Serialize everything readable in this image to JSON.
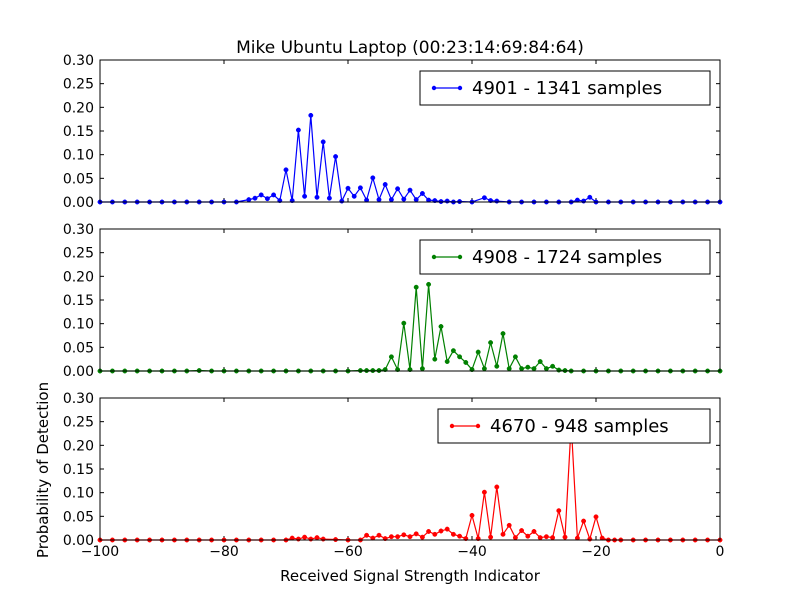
{
  "chart_data": {
    "type": "line",
    "title": "Mike Ubuntu Laptop (00:23:14:69:84:64)",
    "xlabel": "Received Signal Strength Indicator",
    "ylabel": "Probability of Detection",
    "xlim": [
      -100,
      0
    ],
    "ylim": [
      0,
      0.3
    ],
    "x_ticks": [
      -100,
      -80,
      -60,
      -40,
      -20,
      0
    ],
    "x_tick_labels": [
      "−100",
      "−80",
      "−60",
      "−40",
      "−20",
      "0"
    ],
    "y_ticks": [
      0,
      0.05,
      0.1,
      0.15,
      0.2,
      0.25,
      0.3
    ],
    "y_tick_labels": [
      "0.00",
      "0.05",
      "0.10",
      "0.15",
      "0.20",
      "0.25",
      "0.30"
    ],
    "grid": false,
    "legend_position": "top-right",
    "series": [
      {
        "name": "4901 - 1341 samples",
        "color": "#0000ff",
        "x": [
          -100,
          -98,
          -96,
          -94,
          -92,
          -90,
          -88,
          -86,
          -84,
          -82,
          -80,
          -78,
          -76,
          -75,
          -74,
          -73,
          -72,
          -71,
          -70,
          -69,
          -68,
          -67,
          -66,
          -65,
          -64,
          -63,
          -62,
          -61,
          -60,
          -59,
          -58,
          -57,
          -56,
          -55,
          -54,
          -53,
          -52,
          -51,
          -50,
          -49,
          -48,
          -47,
          -46,
          -45,
          -44,
          -43,
          -42,
          -40,
          -38,
          -37,
          -36,
          -34,
          -32,
          -30,
          -28,
          -26,
          -24,
          -23,
          -22,
          -21,
          -20,
          -18,
          -16,
          -14,
          -12,
          -10,
          -8,
          -6,
          -4,
          -2,
          0
        ],
        "y": [
          0,
          0,
          0,
          0,
          0,
          0,
          0,
          0,
          0,
          0,
          0,
          0,
          0.005,
          0.008,
          0.015,
          0.007,
          0.015,
          0.003,
          0.068,
          0.003,
          0.152,
          0.012,
          0.183,
          0.01,
          0.127,
          0.008,
          0.096,
          0.002,
          0.029,
          0.012,
          0.03,
          0.004,
          0.051,
          0.005,
          0.037,
          0.005,
          0.028,
          0.006,
          0.025,
          0.005,
          0.018,
          0.004,
          0.003,
          0.001,
          0.002,
          0,
          0.001,
          0,
          0.009,
          0.003,
          0.002,
          0,
          0,
          0,
          0,
          0,
          0,
          0.004,
          0.002,
          0.01,
          0,
          0,
          0,
          0,
          0,
          0,
          0,
          0,
          0,
          0,
          0
        ]
      },
      {
        "name": "4908 - 1724 samples",
        "color": "#008000",
        "x": [
          -100,
          -98,
          -96,
          -94,
          -92,
          -90,
          -88,
          -86,
          -84,
          -82,
          -80,
          -78,
          -76,
          -74,
          -72,
          -70,
          -68,
          -66,
          -64,
          -62,
          -60,
          -58,
          -57,
          -56,
          -55,
          -54,
          -53,
          -52,
          -51,
          -50,
          -49,
          -48,
          -47,
          -46,
          -45,
          -44,
          -43,
          -42,
          -41,
          -40,
          -39,
          -38,
          -37,
          -36,
          -35,
          -34,
          -33,
          -32,
          -31,
          -30,
          -29,
          -28,
          -27,
          -26,
          -25,
          -24,
          -22,
          -20,
          -18,
          -16,
          -14,
          -12,
          -10,
          -8,
          -6,
          -4,
          -2,
          0
        ],
        "y": [
          0,
          0,
          0,
          0,
          0,
          0,
          0,
          0,
          0.001,
          0,
          0,
          0,
          0,
          0,
          0,
          0,
          0,
          0,
          0,
          0,
          0,
          0.001,
          0.001,
          0.001,
          0.001,
          0.003,
          0.03,
          0.003,
          0.101,
          0.003,
          0.177,
          0.005,
          0.183,
          0.025,
          0.094,
          0.02,
          0.043,
          0.03,
          0.018,
          0.003,
          0.04,
          0.005,
          0.06,
          0.01,
          0.079,
          0.005,
          0.03,
          0.005,
          0.008,
          0.005,
          0.02,
          0.005,
          0.01,
          0.002,
          0.001,
          0,
          0,
          0,
          0,
          0,
          0,
          0,
          0,
          0,
          0,
          0,
          0,
          0
        ]
      },
      {
        "name": "4670 - 948 samples",
        "color": "#ff0000",
        "x": [
          -100,
          -98,
          -96,
          -94,
          -92,
          -90,
          -88,
          -86,
          -84,
          -82,
          -80,
          -78,
          -76,
          -74,
          -72,
          -70,
          -69,
          -68,
          -67,
          -66,
          -65,
          -64,
          -62,
          -60,
          -58,
          -57,
          -56,
          -55,
          -54,
          -53,
          -52,
          -51,
          -50,
          -49,
          -48,
          -47,
          -46,
          -45,
          -44,
          -43,
          -42,
          -41,
          -40,
          -39,
          -38,
          -37,
          -36,
          -35,
          -34,
          -33,
          -32,
          -31,
          -30,
          -29,
          -28,
          -27,
          -26,
          -25,
          -24,
          -23,
          -22,
          -21,
          -20,
          -19,
          -18,
          -17,
          -16,
          -14,
          -12,
          -10,
          -8,
          -6,
          -4,
          -2,
          0
        ],
        "y": [
          0,
          0,
          0,
          0,
          0,
          0,
          0,
          0,
          0,
          0,
          0,
          0,
          0,
          0,
          0,
          0,
          0.004,
          0.002,
          0.006,
          0.002,
          0.005,
          0.002,
          0.001,
          0,
          0,
          0.01,
          0.004,
          0.01,
          0.003,
          0.007,
          0.007,
          0.011,
          0.007,
          0.013,
          0.006,
          0.018,
          0.012,
          0.019,
          0.023,
          0.012,
          0.008,
          0.003,
          0.052,
          0.003,
          0.101,
          0.006,
          0.112,
          0.012,
          0.031,
          0.005,
          0.02,
          0.008,
          0.018,
          0.005,
          0.007,
          0.005,
          0.062,
          0.006,
          0.245,
          0.004,
          0.04,
          0.002,
          0.049,
          0.004,
          0,
          0,
          0,
          0,
          0,
          0,
          0,
          0,
          0,
          0,
          0
        ]
      }
    ]
  }
}
